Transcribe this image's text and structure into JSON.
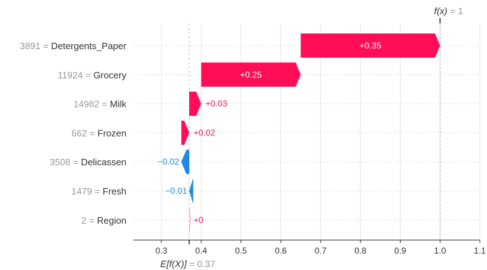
{
  "chart_data": {
    "type": "waterfall",
    "base_value": 0.37,
    "output_value": 1,
    "xlim": [
      0.23,
      1.1
    ],
    "xticks": [
      0.3,
      0.4,
      0.5,
      0.6,
      0.7,
      0.8,
      0.9,
      1.0,
      1.1
    ],
    "features": [
      {
        "value": "3891",
        "name": "Detergents_Paper",
        "contribution": 0.35,
        "start": 0.65,
        "label": "+0.35"
      },
      {
        "value": "11924",
        "name": "Grocery",
        "contribution": 0.25,
        "start": 0.4,
        "label": "+0.25"
      },
      {
        "value": "14982",
        "name": "Milk",
        "contribution": 0.03,
        "start": 0.37,
        "label": "+0.03"
      },
      {
        "value": "662",
        "name": "Frozen",
        "contribution": 0.02,
        "start": 0.35,
        "label": "+0.02"
      },
      {
        "value": "3508",
        "name": "Delicassen",
        "contribution": -0.02,
        "start": 0.37,
        "label": "−0.02"
      },
      {
        "value": "1479",
        "name": "Fresh",
        "contribution": -0.01,
        "start": 0.38,
        "label": "−0.01"
      },
      {
        "value": "2",
        "name": "Region",
        "contribution": 0.0,
        "start": 0.37,
        "label": "+0"
      }
    ],
    "fx_label": {
      "func": "f(x)",
      "eq": " = 1"
    },
    "efx_label": {
      "func": "E[f(X)]",
      "eq": " = 0.37"
    },
    "colors": {
      "positive": "#ff0d57",
      "negative": "#1e88e5",
      "grid": "#e6e6e6",
      "axis": "#333333"
    }
  }
}
